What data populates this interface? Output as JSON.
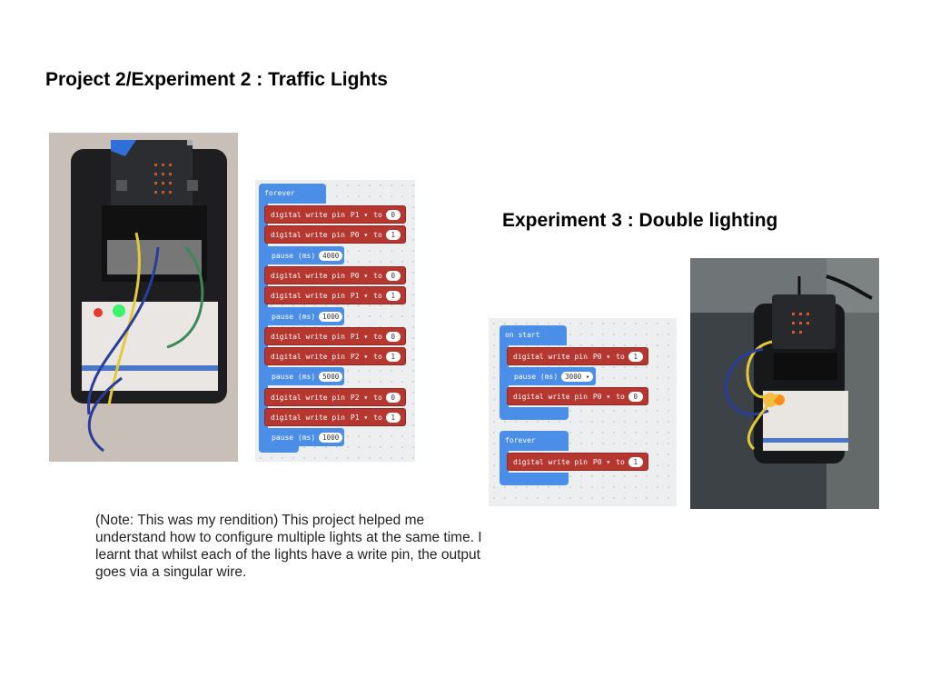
{
  "slide": {
    "title_left": "Project 2/Experiment 2 : Traffic Lights",
    "title_right": "Experiment 3 : Double lighting",
    "note": "(Note: This was my rendition) This project helped me understand how to configure multiple lights at the same time. I learnt that whilst each of the lights have a write pin, the output goes via a singular wire."
  },
  "code1": {
    "hat": "forever",
    "rows": [
      {
        "kind": "write",
        "label": "digital write pin",
        "pin": "P1",
        "to": "to",
        "value": "0"
      },
      {
        "kind": "write",
        "label": "digital write pin",
        "pin": "P0",
        "to": "to",
        "value": "1"
      },
      {
        "kind": "pause",
        "label": "pause (ms)",
        "value": "4000"
      },
      {
        "kind": "write",
        "label": "digital write pin",
        "pin": "P0",
        "to": "to",
        "value": "0"
      },
      {
        "kind": "write",
        "label": "digital write pin",
        "pin": "P1",
        "to": "to",
        "value": "1"
      },
      {
        "kind": "pause",
        "label": "pause (ms)",
        "value": "1000"
      },
      {
        "kind": "write",
        "label": "digital write pin",
        "pin": "P1",
        "to": "to",
        "value": "0"
      },
      {
        "kind": "write",
        "label": "digital write pin",
        "pin": "P2",
        "to": "to",
        "value": "1"
      },
      {
        "kind": "pause",
        "label": "pause (ms)",
        "value": "5000"
      },
      {
        "kind": "write",
        "label": "digital write pin",
        "pin": "P2",
        "to": "to",
        "value": "0"
      },
      {
        "kind": "write",
        "label": "digital write pin",
        "pin": "P1",
        "to": "to",
        "value": "1"
      },
      {
        "kind": "pause",
        "label": "pause (ms)",
        "value": "1000"
      }
    ]
  },
  "code2": {
    "start_hat": "on start",
    "start_rows": [
      {
        "label": "digital write pin",
        "pin": "P0",
        "to": "to",
        "value": "1"
      },
      {
        "label": "pause (ms)",
        "value": "3000"
      },
      {
        "label": "digital write pin",
        "pin": "P0",
        "to": "to",
        "value": "0"
      }
    ],
    "forever_hat": "forever",
    "forever_row": {
      "label": "digital write pin",
      "pin": "P0",
      "to": "to",
      "value": "1"
    }
  },
  "colors": {
    "block_blue": "#4b8ee8",
    "block_red": "#b5372f",
    "workspace": "#eceef0"
  }
}
